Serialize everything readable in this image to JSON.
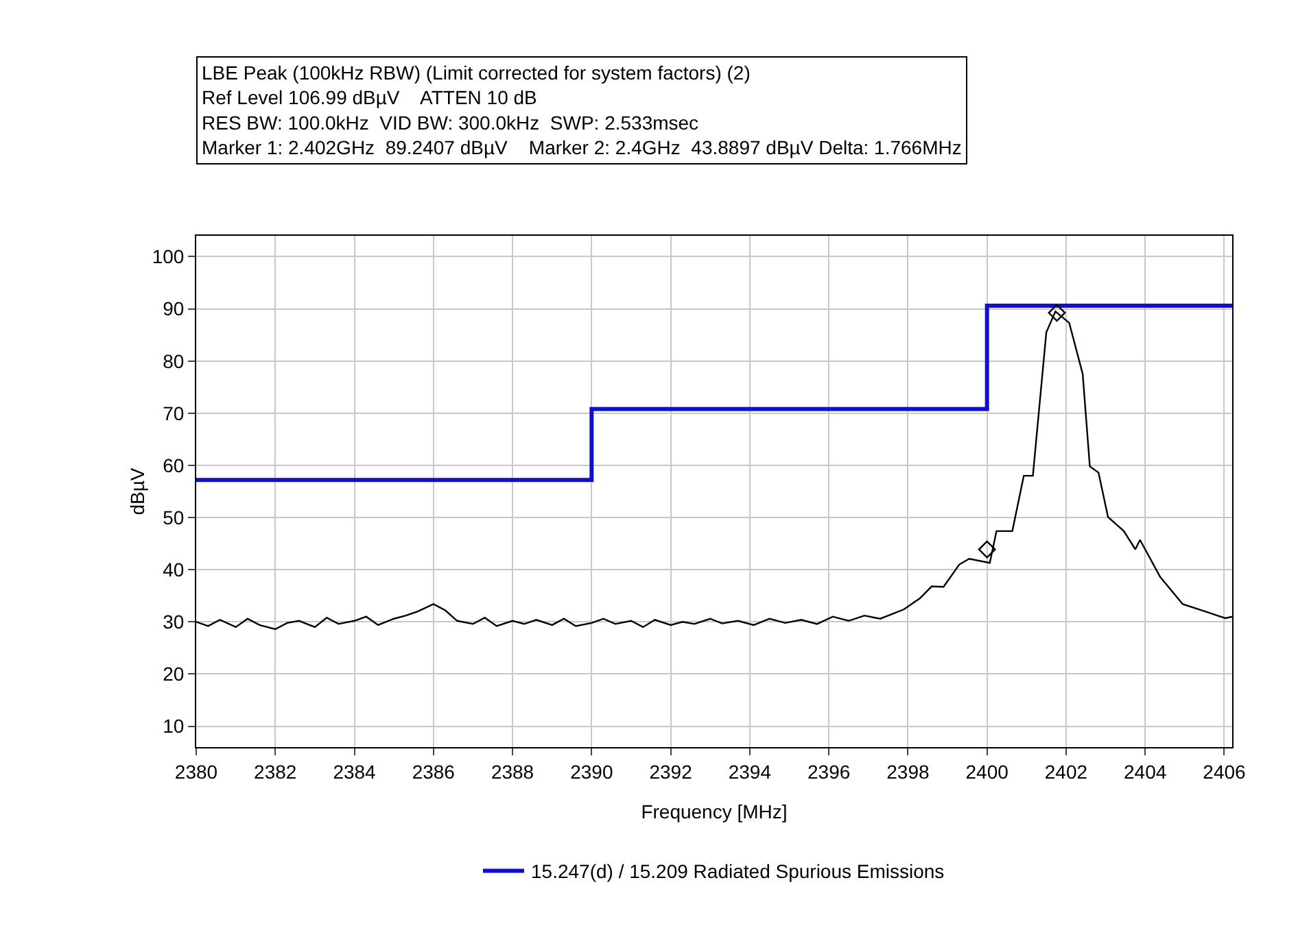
{
  "chart_data": {
    "type": "line",
    "title": "LBE Peak (100kHz RBW) (Limit corrected for system factors) (2)",
    "annotations": [
      "Ref Level 106.99 dBµV    ATTEN 10 dB",
      "RES BW: 100.0kHz  VID BW: 300.0kHz  SWP: 2.533msec",
      "Marker 1: 2.402GHz  89.2407 dBµV    Marker 2: 2.4GHz  43.8897 dBµV Delta: 1.766MHz"
    ],
    "xlabel": "Frequency [MHz]",
    "ylabel": "dBµV",
    "series": [
      {
        "name": "15.247(d) / 15.209 Radiated Spurious Emissions",
        "type": "step",
        "color": "#1010c8",
        "x": [
          2380,
          2390,
          2400,
          2406.2
        ],
        "values": [
          57.2,
          70.8,
          90.6,
          90.6
        ]
      },
      {
        "color": "#000000",
        "x": [
          2380,
          2380.3,
          2380.6,
          2381,
          2381.3,
          2381.6,
          2382,
          2382.3,
          2382.6,
          2383,
          2383.3,
          2383.6,
          2384,
          2384.3,
          2384.6,
          2385,
          2385.3,
          2385.6,
          2386,
          2386.3,
          2386.6,
          2387,
          2387.3,
          2387.6,
          2388,
          2388.3,
          2388.6,
          2389,
          2389.3,
          2389.6,
          2390,
          2390.3,
          2390.6,
          2391,
          2391.3,
          2391.6,
          2392,
          2392.3,
          2392.6,
          2393,
          2393.3,
          2393.7,
          2394.1,
          2394.5,
          2394.9,
          2395.3,
          2395.7,
          2396.1,
          2396.5,
          2396.9,
          2397.3,
          2397.6,
          2397.9,
          2398.3,
          2398.6,
          2398.9,
          2399.3,
          2399.55,
          2400.07,
          2400.24,
          2400.64,
          2400.93,
          2401.16,
          2401.5,
          2401.73,
          2402.08,
          2402.42,
          2402.6,
          2402.82,
          2403.06,
          2403.46,
          2403.75,
          2403.87,
          2404.38,
          2404.95,
          2405.52,
          2406.03,
          2406.2
        ],
        "values": [
          30,
          29.2,
          30.4,
          29,
          30.6,
          29.4,
          28.6,
          29.8,
          30.2,
          29,
          30.8,
          29.6,
          30.2,
          31,
          29.4,
          30.6,
          31.2,
          32,
          33.4,
          32.2,
          30.2,
          29.6,
          30.8,
          29.2,
          30.2,
          29.6,
          30.4,
          29.4,
          30.6,
          29.2,
          29.8,
          30.6,
          29.6,
          30.2,
          29,
          30.4,
          29.4,
          30,
          29.6,
          30.6,
          29.7,
          30.2,
          29.4,
          30.6,
          29.8,
          30.4,
          29.6,
          31,
          30.2,
          31.2,
          30.6,
          31.5,
          32.4,
          34.5,
          36.8,
          36.7,
          41,
          42.1,
          41.3,
          47.4,
          47.4,
          58,
          58,
          85.5,
          89.5,
          87.3,
          77.5,
          59.8,
          58.6,
          50.1,
          47.4,
          43.9,
          45.7,
          38.6,
          33.4,
          32,
          30.7,
          31
        ]
      },
      {
        "type": "scatter",
        "marker": "diamond",
        "color": "#000000",
        "x": [
          2401.766,
          2400
        ],
        "values": [
          89.2407,
          43.8897
        ]
      }
    ],
    "xlim": [
      2380,
      2406.2
    ],
    "xticks": [
      2380,
      2382,
      2384,
      2386,
      2388,
      2390,
      2392,
      2394,
      2396,
      2398,
      2400,
      2402,
      2404,
      2406
    ],
    "ylim": [
      6,
      104
    ],
    "yticks": [
      10,
      20,
      30,
      40,
      50,
      60,
      70,
      80,
      90,
      100
    ],
    "grid": true,
    "legend": "bottom"
  }
}
